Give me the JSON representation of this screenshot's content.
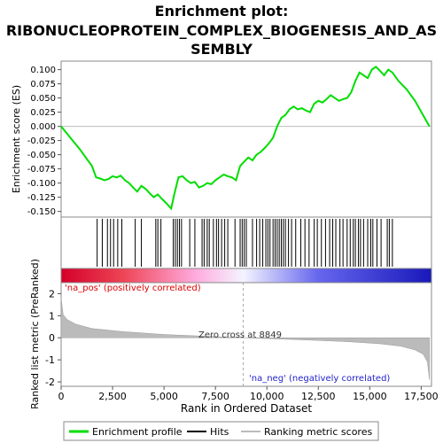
{
  "chart_data": {
    "type": "line",
    "title_lines": [
      "Enrichment plot:",
      "RIBONUCLEOPROTEIN_COMPLEX_BIOGENESIS_AND_AS",
      "SEMBLY"
    ],
    "xlabel": "Rank in Ordered Dataset",
    "es_panel": {
      "ylabel": "Enrichment score (ES)",
      "ylim": [
        -0.16,
        0.115
      ],
      "yticks": [
        -0.15,
        -0.125,
        -0.1,
        -0.075,
        -0.05,
        -0.025,
        0.0,
        0.025,
        0.05,
        0.075,
        0.1
      ],
      "ytick_labels": [
        "-0.150",
        "-0.125",
        "-0.100",
        "-0.075",
        "-0.050",
        "-0.025",
        "0.000",
        "0.025",
        "0.050",
        "0.075",
        "0.100"
      ],
      "series": {
        "color": "#00dd00",
        "x": [
          0,
          900,
          1500,
          1700,
          1900,
          2100,
          2300,
          2500,
          2700,
          2900,
          3100,
          3300,
          3500,
          3700,
          3900,
          4100,
          4300,
          4500,
          4700,
          4900,
          5100,
          5350,
          5500,
          5700,
          5900,
          6100,
          6300,
          6500,
          6700,
          6900,
          7100,
          7300,
          7500,
          7700,
          7900,
          8100,
          8300,
          8500,
          8700,
          8900,
          9100,
          9300,
          9500,
          9700,
          9900,
          10100,
          10300,
          10500,
          10700,
          10900,
          11100,
          11300,
          11500,
          11700,
          11900,
          12100,
          12300,
          12500,
          12700,
          12900,
          13100,
          13300,
          13500,
          13700,
          13900,
          14100,
          14300,
          14500,
          14700,
          14900,
          15100,
          15300,
          15500,
          15700,
          15900,
          16100,
          16400,
          16800,
          17200,
          17900
        ],
        "y": [
          0.0,
          -0.04,
          -0.07,
          -0.09,
          -0.092,
          -0.095,
          -0.093,
          -0.088,
          -0.09,
          -0.087,
          -0.095,
          -0.1,
          -0.108,
          -0.115,
          -0.105,
          -0.11,
          -0.118,
          -0.125,
          -0.12,
          -0.128,
          -0.135,
          -0.145,
          -0.12,
          -0.09,
          -0.088,
          -0.095,
          -0.1,
          -0.098,
          -0.108,
          -0.105,
          -0.1,
          -0.102,
          -0.095,
          -0.09,
          -0.085,
          -0.088,
          -0.09,
          -0.095,
          -0.07,
          -0.062,
          -0.055,
          -0.06,
          -0.05,
          -0.045,
          -0.038,
          -0.03,
          -0.02,
          0.0,
          0.015,
          0.02,
          0.03,
          0.035,
          0.03,
          0.032,
          0.028,
          0.025,
          0.04,
          0.045,
          0.042,
          0.048,
          0.055,
          0.05,
          0.045,
          0.048,
          0.05,
          0.06,
          0.08,
          0.095,
          0.09,
          0.085,
          0.1,
          0.105,
          0.098,
          0.09,
          0.1,
          0.095,
          0.08,
          0.065,
          0.045,
          0.0
        ]
      },
      "zero_line": 0.0
    },
    "hits": [
      1750,
      2000,
      2250,
      2400,
      2550,
      2750,
      2950,
      3600,
      3900,
      4600,
      4700,
      4850,
      5450,
      5550,
      5650,
      5750,
      5850,
      6250,
      6500,
      6850,
      6950,
      7100,
      7200,
      7400,
      7550,
      7650,
      7800,
      7950,
      8100,
      8450,
      8700,
      8800,
      8900,
      9000,
      9300,
      9500,
      9650,
      9800,
      9950,
      10050,
      10150,
      10300,
      10400,
      10500,
      10600,
      10700,
      10800,
      10900,
      11050,
      11200,
      11400,
      11650,
      11850,
      12050,
      12300,
      12450,
      12650,
      12850,
      13050,
      13200,
      13350,
      13550,
      13700,
      13900,
      14050,
      14200,
      14300,
      14450,
      14550,
      14700,
      14900,
      15050,
      15150,
      15350,
      15550,
      15850,
      15950,
      16100
    ],
    "heatmap_gradient": {
      "stops": [
        "#d4002a",
        "#ee4455",
        "#ffaadd",
        "#f4f4ff",
        "#6666ee",
        "#1a1abb"
      ],
      "at": [
        0,
        3000,
        6500,
        8849,
        12500,
        17900
      ]
    },
    "ranked_panel": {
      "ylabel": "Ranked list metric (PreRanked)",
      "ylim": [
        -2.2,
        2.5
      ],
      "yticks": [
        -2,
        -1,
        0,
        1,
        2
      ],
      "ytick_labels": [
        "-2",
        "-1",
        "0",
        "1",
        "2"
      ],
      "curve": {
        "x": [
          0,
          100,
          300,
          700,
          1500,
          3000,
          5000,
          7000,
          8849,
          10500,
          12500,
          14000,
          15500,
          16500,
          17200,
          17600,
          17800,
          17900
        ],
        "y": [
          1.8,
          1.05,
          0.82,
          0.62,
          0.42,
          0.28,
          0.15,
          0.07,
          0.0,
          -0.05,
          -0.12,
          -0.18,
          -0.27,
          -0.38,
          -0.55,
          -0.75,
          -1.1,
          -1.9
        ]
      },
      "zero_cross": 8849,
      "zero_cross_label": "Zero cross at 8849",
      "pos_label": "'na_pos' (positively correlated)",
      "neg_label": "'na_neg' (negatively correlated)"
    },
    "xlim": [
      0,
      18000
    ],
    "xticks": [
      0,
      2500,
      5000,
      7500,
      10000,
      12500,
      15000,
      17500
    ],
    "xtick_labels": [
      "0",
      "2,500",
      "5,000",
      "7,500",
      "10,000",
      "12,500",
      "15,000",
      "17,500"
    ],
    "legend": {
      "position": "bottom",
      "entries": [
        {
          "label": "Enrichment profile",
          "color": "#00dd00",
          "kind": "line"
        },
        {
          "label": "Hits",
          "color": "#000000",
          "kind": "line"
        },
        {
          "label": "Ranking metric scores",
          "color": "#bbbbbb",
          "kind": "line"
        }
      ]
    }
  }
}
